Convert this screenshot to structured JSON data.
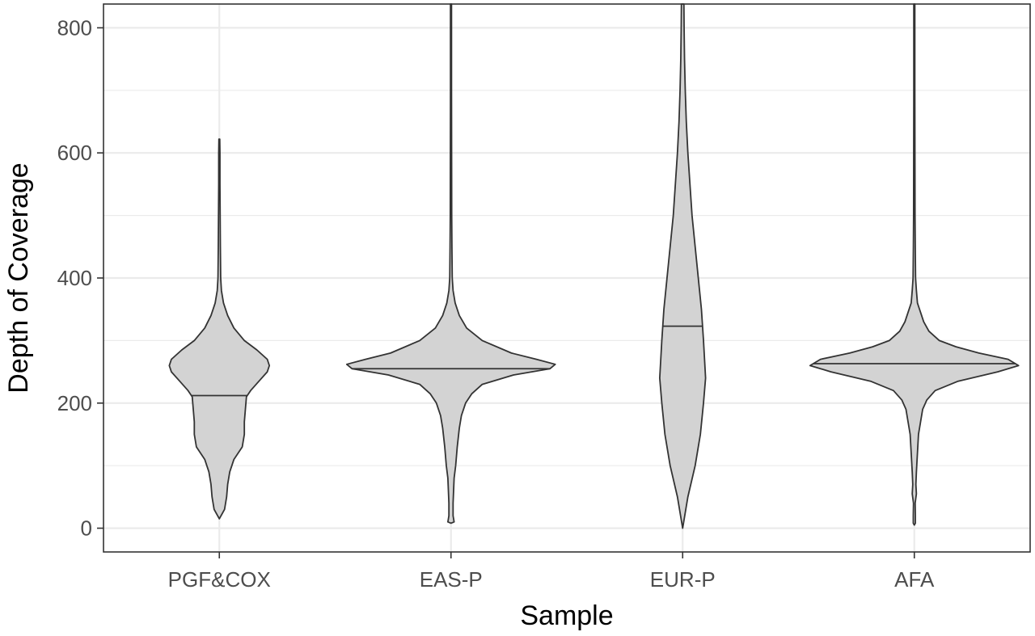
{
  "chart_data": {
    "type": "violin",
    "title": "",
    "xlabel": "Sample",
    "ylabel": "Depth of Coverage",
    "categories": [
      "PGF&COX",
      "EAS-P",
      "EUR-P",
      "AFA"
    ],
    "ylim": [
      -38,
      838
    ],
    "yticks": [
      0,
      200,
      400,
      600,
      800
    ],
    "ytick_labels": [
      "0",
      "200",
      "400",
      "600",
      "800"
    ],
    "grid": true,
    "legend": "none",
    "colors": {
      "fill": "#d3d3d3",
      "outline": "#333333",
      "grid": "#ebebeb",
      "panel_border": "#333333"
    },
    "violins": [
      {
        "category": "PGF&COX",
        "median": 212,
        "min": 15,
        "max": 622,
        "profile": [
          [
            15,
            0.0
          ],
          [
            30,
            0.05
          ],
          [
            50,
            0.07
          ],
          [
            70,
            0.08
          ],
          [
            90,
            0.1
          ],
          [
            110,
            0.14
          ],
          [
            130,
            0.22
          ],
          [
            150,
            0.24
          ],
          [
            170,
            0.24
          ],
          [
            190,
            0.25
          ],
          [
            210,
            0.26
          ],
          [
            220,
            0.3
          ],
          [
            235,
            0.38
          ],
          [
            250,
            0.46
          ],
          [
            260,
            0.48
          ],
          [
            270,
            0.46
          ],
          [
            285,
            0.36
          ],
          [
            300,
            0.24
          ],
          [
            320,
            0.14
          ],
          [
            340,
            0.08
          ],
          [
            360,
            0.04
          ],
          [
            380,
            0.02
          ],
          [
            400,
            0.013
          ],
          [
            450,
            0.01
          ],
          [
            500,
            0.008
          ],
          [
            550,
            0.006
          ],
          [
            600,
            0.006
          ],
          [
            622,
            0.004
          ]
        ]
      },
      {
        "category": "EAS-P",
        "median": 255,
        "min": 8,
        "max": 838,
        "profile": [
          [
            8,
            0.0
          ],
          [
            10,
            0.03
          ],
          [
            20,
            0.02
          ],
          [
            40,
            0.02
          ],
          [
            60,
            0.025
          ],
          [
            80,
            0.03
          ],
          [
            100,
            0.045
          ],
          [
            130,
            0.06
          ],
          [
            160,
            0.08
          ],
          [
            180,
            0.1
          ],
          [
            200,
            0.14
          ],
          [
            215,
            0.2
          ],
          [
            230,
            0.3
          ],
          [
            245,
            0.6
          ],
          [
            255,
            0.95
          ],
          [
            262,
            1.0
          ],
          [
            270,
            0.82
          ],
          [
            280,
            0.58
          ],
          [
            300,
            0.3
          ],
          [
            320,
            0.15
          ],
          [
            340,
            0.08
          ],
          [
            360,
            0.04
          ],
          [
            380,
            0.02
          ],
          [
            400,
            0.012
          ],
          [
            450,
            0.009
          ],
          [
            500,
            0.007
          ],
          [
            600,
            0.006
          ],
          [
            700,
            0.005
          ],
          [
            838,
            0.005
          ]
        ]
      },
      {
        "category": "EUR-P",
        "median": 323,
        "min": 0,
        "max": 838,
        "profile": [
          [
            0,
            0.0
          ],
          [
            50,
            0.05
          ],
          [
            100,
            0.12
          ],
          [
            150,
            0.17
          ],
          [
            200,
            0.2
          ],
          [
            240,
            0.22
          ],
          [
            270,
            0.21
          ],
          [
            300,
            0.2
          ],
          [
            350,
            0.18
          ],
          [
            400,
            0.15
          ],
          [
            450,
            0.12
          ],
          [
            500,
            0.09
          ],
          [
            550,
            0.07
          ],
          [
            600,
            0.05
          ],
          [
            650,
            0.035
          ],
          [
            700,
            0.025
          ],
          [
            750,
            0.018
          ],
          [
            800,
            0.014
          ],
          [
            838,
            0.012
          ]
        ]
      },
      {
        "category": "AFA",
        "median": 263,
        "min": 5,
        "max": 838,
        "profile": [
          [
            5,
            0.0
          ],
          [
            8,
            0.01
          ],
          [
            20,
            0.01
          ],
          [
            40,
            0.008
          ],
          [
            55,
            0.02
          ],
          [
            70,
            0.015
          ],
          [
            90,
            0.02
          ],
          [
            120,
            0.03
          ],
          [
            150,
            0.04
          ],
          [
            170,
            0.06
          ],
          [
            190,
            0.08
          ],
          [
            205,
            0.12
          ],
          [
            220,
            0.2
          ],
          [
            235,
            0.42
          ],
          [
            250,
            0.8
          ],
          [
            260,
            1.0
          ],
          [
            270,
            0.9
          ],
          [
            280,
            0.62
          ],
          [
            290,
            0.4
          ],
          [
            300,
            0.24
          ],
          [
            315,
            0.14
          ],
          [
            330,
            0.09
          ],
          [
            345,
            0.06
          ],
          [
            360,
            0.03
          ],
          [
            380,
            0.02
          ],
          [
            400,
            0.012
          ],
          [
            450,
            0.009
          ],
          [
            500,
            0.007
          ],
          [
            600,
            0.006
          ],
          [
            700,
            0.005
          ],
          [
            838,
            0.005
          ]
        ]
      }
    ]
  }
}
